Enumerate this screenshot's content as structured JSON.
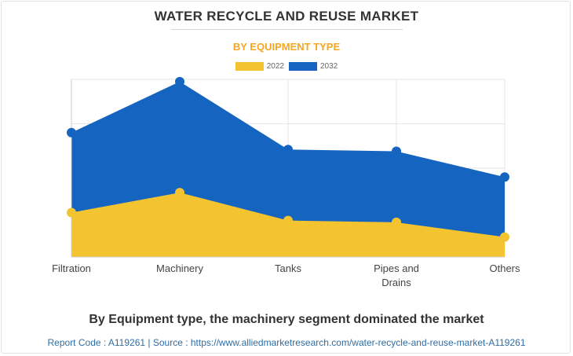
{
  "header": {
    "title": "WATER RECYCLE AND REUSE MARKET",
    "subtitle": "BY EQUIPMENT TYPE"
  },
  "caption": "By Equipment type, the machinery segment dominated the market",
  "footer": {
    "report_code": "Report Code : A119261",
    "separator": "|",
    "source": "Source : https://www.alliedmarketresearch.com/water-recycle-and-reuse-market-A119261"
  },
  "colors": {
    "subtitle": "#f5a623",
    "series_2022": "#f4c430",
    "series_2032": "#1565c0"
  },
  "chart_data": {
    "type": "area",
    "stacked": true,
    "categories": [
      "Filtration",
      "Machinery",
      "Tanks",
      "Pipes and Drains",
      "Others"
    ],
    "series": [
      {
        "name": "2022",
        "values": [
          1.0,
          1.45,
          0.82,
          0.78,
          0.45
        ]
      },
      {
        "name": "2032",
        "values": [
          1.8,
          2.5,
          1.6,
          1.6,
          1.35
        ]
      }
    ],
    "ylim": [
      0,
      4
    ],
    "y_gridlines": 4,
    "x_gridlines": true,
    "y_tick_labels_shown": false,
    "legend_position": "top-center",
    "title": "",
    "xlabel": "",
    "ylabel": ""
  }
}
